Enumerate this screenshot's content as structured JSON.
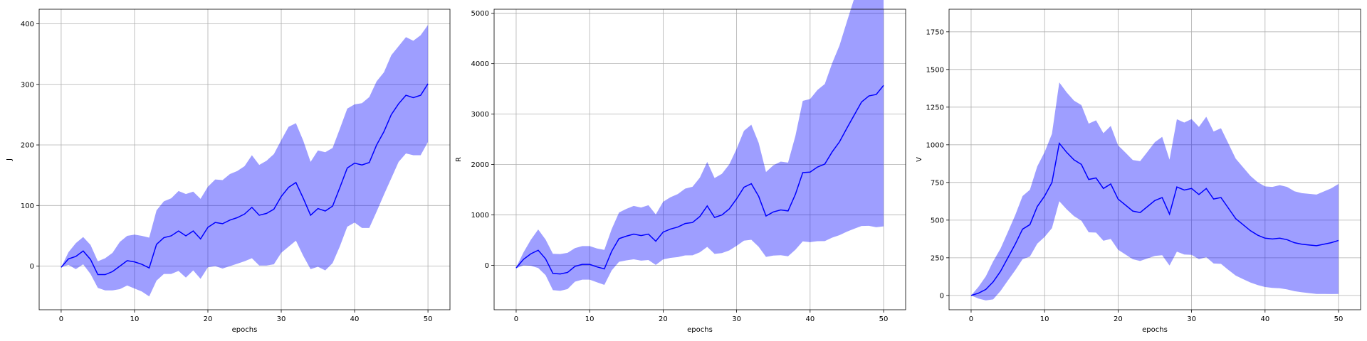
{
  "chart_data": [
    {
      "type": "line",
      "xlabel": "epochs",
      "ylabel": "J",
      "xlim": [
        -3,
        53
      ],
      "ylim": [
        -72,
        424
      ],
      "xticks": [
        0,
        10,
        20,
        30,
        40,
        50
      ],
      "yticks": [
        0,
        100,
        200,
        300,
        400
      ],
      "grid": true,
      "series_color": "#0000ff",
      "x": [
        0,
        1,
        2,
        3,
        4,
        5,
        6,
        7,
        8,
        9,
        10,
        11,
        12,
        13,
        14,
        15,
        16,
        17,
        18,
        19,
        20,
        21,
        22,
        23,
        24,
        25,
        26,
        27,
        28,
        29,
        30,
        31,
        32,
        33,
        34,
        35,
        36,
        37,
        38,
        39,
        40,
        41,
        42,
        43,
        44,
        45,
        46,
        47,
        48,
        49,
        50
      ],
      "mean": [
        -2,
        12,
        16,
        25,
        11,
        -14,
        -14,
        -9,
        0,
        9,
        7,
        3,
        -3,
        36,
        47,
        50,
        58,
        50,
        58,
        45,
        64,
        72,
        70,
        76,
        80,
        86,
        97,
        84,
        87,
        94,
        115,
        130,
        138,
        112,
        84,
        95,
        91,
        99,
        130,
        162,
        170,
        167,
        171,
        200,
        222,
        250,
        268,
        282,
        278,
        282,
        301
      ],
      "upper": [
        -2,
        23,
        38,
        48,
        35,
        8,
        13,
        22,
        40,
        50,
        52,
        50,
        47,
        92,
        107,
        112,
        124,
        119,
        123,
        111,
        131,
        143,
        142,
        152,
        157,
        165,
        183,
        167,
        174,
        185,
        208,
        230,
        236,
        207,
        172,
        191,
        188,
        195,
        227,
        260,
        267,
        269,
        279,
        305,
        320,
        348,
        363,
        378,
        372,
        381,
        398
      ],
      "lower": [
        -2,
        2,
        -5,
        3,
        -13,
        -36,
        -40,
        -40,
        -38,
        -32,
        -37,
        -42,
        -50,
        -24,
        -13,
        -13,
        -8,
        -19,
        -7,
        -21,
        -2,
        0,
        -4,
        0,
        4,
        8,
        13,
        1,
        1,
        3,
        22,
        32,
        42,
        17,
        -5,
        -1,
        -7,
        5,
        33,
        65,
        72,
        63,
        63,
        90,
        118,
        145,
        172,
        186,
        183,
        183,
        205
      ]
    },
    {
      "type": "line",
      "xlabel": "epochs",
      "ylabel": "R",
      "xlim": [
        -3,
        53
      ],
      "ylim": [
        -880,
        5080
      ],
      "xticks": [
        0,
        10,
        20,
        30,
        40,
        50
      ],
      "yticks": [
        0,
        1000,
        2000,
        3000,
        4000,
        5000
      ],
      "grid": true,
      "series_color": "#0000ff",
      "x": [
        0,
        1,
        2,
        3,
        4,
        5,
        6,
        7,
        8,
        9,
        10,
        11,
        12,
        13,
        14,
        15,
        16,
        17,
        18,
        19,
        20,
        21,
        22,
        23,
        24,
        25,
        26,
        27,
        28,
        29,
        30,
        31,
        32,
        33,
        34,
        35,
        36,
        37,
        38,
        39,
        40,
        41,
        42,
        43,
        44,
        45,
        46,
        47,
        48,
        49,
        50
      ],
      "mean": [
        -50,
        120,
        230,
        300,
        130,
        -160,
        -170,
        -140,
        -20,
        20,
        20,
        -30,
        -70,
        280,
        530,
        580,
        620,
        590,
        620,
        480,
        660,
        720,
        760,
        830,
        850,
        970,
        1180,
        950,
        1000,
        1120,
        1320,
        1550,
        1620,
        1370,
        980,
        1060,
        1100,
        1080,
        1410,
        1840,
        1850,
        1950,
        2010,
        2250,
        2450,
        2720,
        2980,
        3240,
        3360,
        3390,
        3570
      ]
    },
    {
      "type": "line",
      "xlabel": "epochs",
      "ylabel": "V",
      "xlim": [
        -3,
        53
      ],
      "ylim": [
        -95,
        1900
      ],
      "xticks": [
        0,
        10,
        20,
        30,
        40,
        50
      ],
      "yticks": [
        0,
        250,
        500,
        750,
        1000,
        1250,
        1500,
        1750
      ],
      "grid": true,
      "series_color": "#0000ff",
      "x": [
        0,
        1,
        2,
        3,
        4,
        5,
        6,
        7,
        8,
        9,
        10,
        11,
        12,
        13,
        14,
        15,
        16,
        17,
        18,
        19,
        20,
        21,
        22,
        23,
        24,
        25,
        26,
        27,
        28,
        29,
        30,
        31,
        32,
        33,
        34,
        35,
        36,
        37,
        38,
        39,
        40,
        41,
        42,
        43,
        44,
        45,
        46,
        47,
        48,
        49,
        50
      ],
      "mean": [
        0,
        15,
        40,
        90,
        160,
        250,
        340,
        440,
        470,
        590,
        660,
        750,
        1010,
        950,
        900,
        870,
        770,
        780,
        710,
        740,
        640,
        600,
        560,
        550,
        590,
        630,
        650,
        540,
        720,
        700,
        710,
        670,
        710,
        640,
        650,
        580,
        510,
        470,
        430,
        400,
        380,
        375,
        380,
        370,
        350,
        340,
        335,
        330,
        340,
        350,
        365
      ]
    }
  ]
}
